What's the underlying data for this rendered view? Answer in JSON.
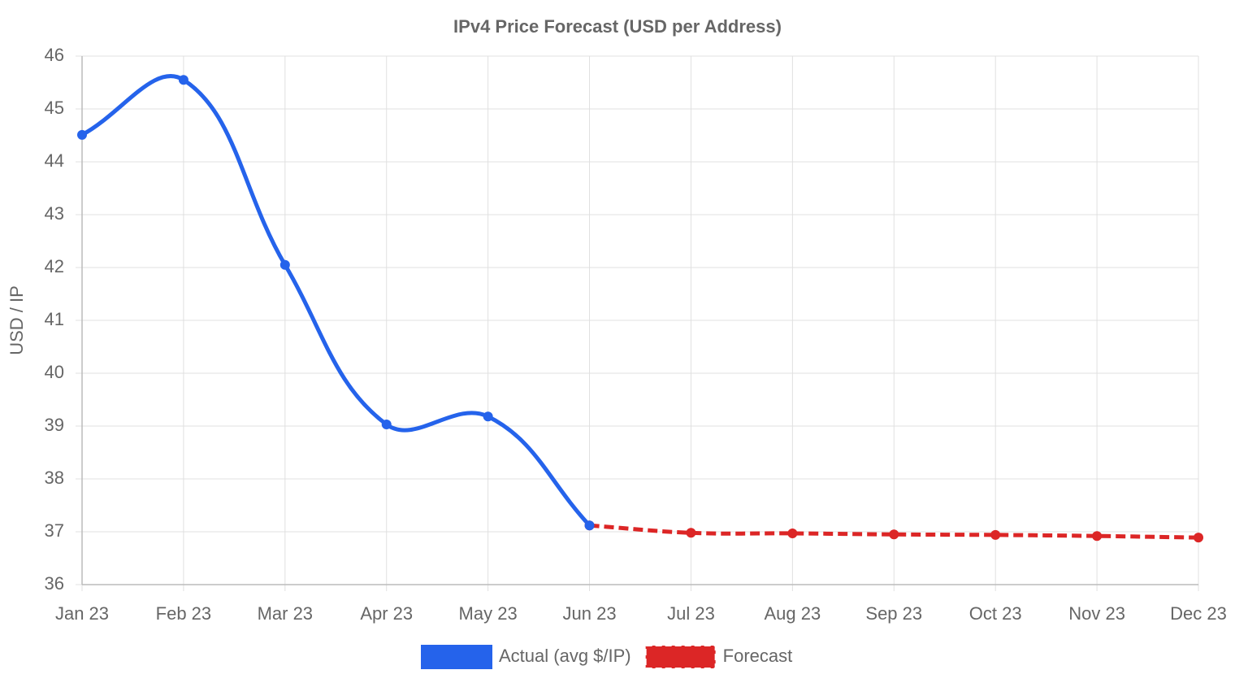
{
  "chart_data": {
    "type": "line",
    "title": "IPv4 Price Forecast (USD per Address)",
    "y_label": "USD / IP",
    "categories": [
      "Jan 23",
      "Feb 23",
      "Mar 23",
      "Apr 23",
      "May 23",
      "Jun 23",
      "Jul 23",
      "Aug 23",
      "Sep 23",
      "Oct 23",
      "Nov 23",
      "Dec 23"
    ],
    "series": [
      {
        "name": "Actual (avg $/IP)",
        "color": "#2563eb",
        "line_style": "solid",
        "values": [
          44.51,
          45.55,
          42.05,
          39.03,
          39.18,
          37.12,
          null,
          null,
          null,
          null,
          null,
          null
        ]
      },
      {
        "name": "Forecast",
        "color": "#dc2626",
        "line_style": "dashed",
        "values": [
          null,
          null,
          null,
          null,
          null,
          37.12,
          36.98,
          36.97,
          36.95,
          36.94,
          36.92,
          36.89
        ]
      }
    ],
    "ylim": [
      36,
      46
    ],
    "yticks": [
      36,
      37,
      38,
      39,
      40,
      41,
      42,
      43,
      44,
      45,
      46
    ],
    "grid": true,
    "legend": "bottom"
  }
}
